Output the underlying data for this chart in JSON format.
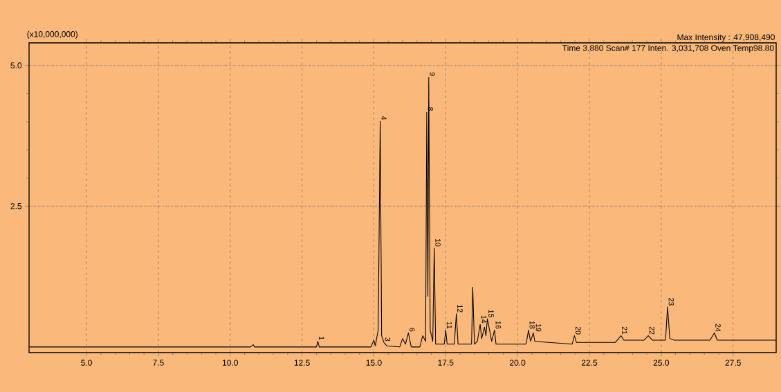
{
  "chart_data": {
    "type": "line",
    "ylabel": "(x10,000,000)",
    "annotations": [
      "Max Intensity : 47,908,490",
      "Time    3.880   Scan#    177   Inten.        3,031,708   Oven Temp98.80",
      {
        "text": "1",
        "x": 13.05,
        "y": 0.1
      },
      {
        "text": "3",
        "x": 15.35,
        "y": 0.08
      },
      {
        "text": "4",
        "x": 15.22,
        "y": 4.01
      },
      {
        "text": "6",
        "x": 16.2,
        "y": 0.25
      },
      {
        "text": "8",
        "x": 16.84,
        "y": 4.17
      },
      {
        "text": "9",
        "x": 16.91,
        "y": 4.79
      },
      {
        "text": "10",
        "x": 17.1,
        "y": 1.76
      },
      {
        "text": "11",
        "x": 17.5,
        "y": 0.3
      },
      {
        "text": "12",
        "x": 17.87,
        "y": 0.59
      },
      {
        "text": "14",
        "x": 18.7,
        "y": 0.4
      },
      {
        "text": "15",
        "x": 18.95,
        "y": 0.5
      },
      {
        "text": "16",
        "x": 19.2,
        "y": 0.3
      },
      {
        "text": "18",
        "x": 20.38,
        "y": 0.3
      },
      {
        "text": "19",
        "x": 20.6,
        "y": 0.25
      },
      {
        "text": "20",
        "x": 21.98,
        "y": 0.2
      },
      {
        "text": "21",
        "x": 23.6,
        "y": 0.2
      },
      {
        "text": "22",
        "x": 24.55,
        "y": 0.2
      },
      {
        "text": "23",
        "x": 25.22,
        "y": 0.71
      },
      {
        "text": "24",
        "x": 26.85,
        "y": 0.25
      }
    ],
    "x": [
      3.0,
      10.7,
      10.8,
      10.85,
      13.0,
      13.05,
      13.1,
      14.9,
      15.0,
      15.05,
      15.15,
      15.22,
      15.27,
      15.35,
      15.45,
      15.9,
      16.0,
      16.1,
      16.2,
      16.3,
      16.6,
      16.7,
      16.8,
      16.84,
      16.88,
      16.91,
      16.96,
      17.05,
      17.1,
      17.15,
      17.45,
      17.5,
      17.55,
      17.8,
      17.87,
      17.93,
      18.4,
      18.44,
      18.5,
      18.6,
      18.7,
      18.75,
      18.85,
      18.9,
      18.95,
      19.1,
      19.2,
      19.25,
      20.3,
      20.38,
      20.45,
      20.55,
      20.6,
      21.9,
      21.98,
      22.05,
      23.4,
      23.6,
      23.7,
      24.4,
      24.55,
      24.7,
      25.15,
      25.22,
      25.3,
      25.45,
      26.7,
      26.85,
      26.95,
      29.0
    ],
    "series": [
      {
        "color": "#000000",
        "values": [
          0,
          0,
          0.04,
          0,
          0,
          0.1,
          0,
          0,
          0.12,
          0.02,
          0.3,
          4.01,
          0.2,
          0.08,
          0.02,
          0,
          0.15,
          0.05,
          0.25,
          0,
          0,
          0.2,
          0.1,
          4.17,
          0.9,
          4.79,
          0.3,
          0.1,
          1.76,
          0.05,
          0.05,
          0.3,
          0.05,
          0.05,
          0.59,
          0.05,
          0.05,
          1.06,
          0.05,
          0.1,
          0.4,
          0.15,
          0.35,
          0.2,
          0.5,
          0.1,
          0.3,
          0.05,
          0.05,
          0.3,
          0.1,
          0.25,
          0.1,
          0.05,
          0.2,
          0.08,
          0.08,
          0.2,
          0.12,
          0.12,
          0.2,
          0.12,
          0.12,
          0.71,
          0.15,
          0.12,
          0.12,
          0.25,
          0.12,
          0.12
        ]
      }
    ],
    "xlim": [
      3.0,
      29.0
    ],
    "ylim": [
      -0.1,
      5.4
    ],
    "xticks": [
      {
        "value": 5,
        "label": "5.0"
      },
      7.5,
      {
        "value": 10,
        "label": "10.0"
      },
      12.5,
      {
        "value": 15,
        "label": "15.0"
      },
      17.5,
      {
        "value": 20,
        "label": "20.0"
      },
      22.5,
      {
        "value": 25,
        "label": "25.0"
      },
      27.5
    ],
    "yticks": [
      2.5,
      {
        "value": 5,
        "label": "5.0"
      }
    ],
    "grid": true
  }
}
